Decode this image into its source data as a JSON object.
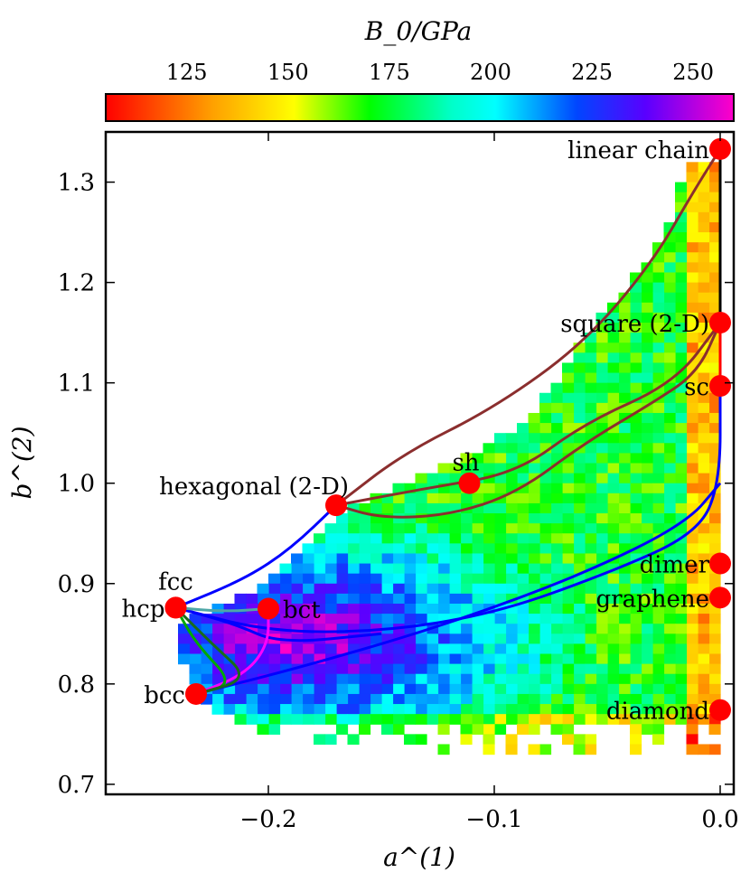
{
  "chart_data": {
    "type": "heatmap",
    "title": "",
    "xlabel": "a^(1)",
    "ylabel": "b^(2)",
    "xlim": [
      -0.272,
      0.006
    ],
    "ylim": [
      0.69,
      1.35
    ],
    "xticks": [
      -0.2,
      -0.1,
      0.0
    ],
    "xtick_labels": [
      "−0.2",
      "−0.1",
      "0.0"
    ],
    "yticks": [
      0.7,
      0.8,
      0.9,
      1.0,
      1.1,
      1.2,
      1.3
    ],
    "ytick_labels": [
      "0.7",
      "0.8",
      "0.9",
      "1.0",
      "1.1",
      "1.2",
      "1.3"
    ],
    "colorbar": {
      "label": "B_0/GPa",
      "range": [
        105,
        260
      ],
      "ticks": [
        125,
        150,
        175,
        200,
        225,
        250
      ],
      "tick_labels": [
        "125",
        "150",
        "175",
        "200",
        "225",
        "250"
      ],
      "colormap": "gist_rainbow_reversed"
    },
    "heatmap": {
      "cell_size_a": 0.005,
      "cell_size_b": 0.01,
      "description_of_fill": "bulk modulus B0 per (a1, b2) cell; cyan/green near a1=0, blue to violet toward a1=-0.2, b2 approx 0.8-0.9",
      "rows": [
        {
          "b": 1.32,
          "a_min": -0.01,
          "a_max": 0.0
        },
        {
          "b": 1.3,
          "a_min": -0.015,
          "a_max": 0.0
        },
        {
          "b": 1.26,
          "a_min": -0.02,
          "a_max": 0.0
        },
        {
          "b": 1.22,
          "a_min": -0.03,
          "a_max": 0.0
        },
        {
          "b": 1.18,
          "a_min": -0.045,
          "a_max": 0.0
        },
        {
          "b": 1.14,
          "a_min": -0.06,
          "a_max": 0.0
        },
        {
          "b": 1.1,
          "a_min": -0.07,
          "a_max": 0.0
        },
        {
          "b": 1.06,
          "a_min": -0.085,
          "a_max": 0.0
        },
        {
          "b": 1.02,
          "a_min": -0.115,
          "a_max": 0.0
        },
        {
          "b": 0.98,
          "a_min": -0.16,
          "a_max": 0.0
        },
        {
          "b": 0.94,
          "a_min": -0.18,
          "a_max": 0.0
        },
        {
          "b": 0.9,
          "a_min": -0.2,
          "a_max": 0.0
        },
        {
          "b": 0.86,
          "a_min": -0.235,
          "a_max": 0.0
        },
        {
          "b": 0.82,
          "a_min": -0.235,
          "a_max": 0.0
        },
        {
          "b": 0.78,
          "a_min": -0.225,
          "a_max": 0.0
        },
        {
          "b": 0.75,
          "a_min": -0.2,
          "a_max": 0.0
        },
        {
          "b": 0.73,
          "a_min": -0.1,
          "a_max": 0.0
        }
      ]
    },
    "points": [
      {
        "name": "linear chain",
        "a": 0.0,
        "b": 1.333
      },
      {
        "name": "square (2-D)",
        "a": 0.0,
        "b": 1.16
      },
      {
        "name": "sc",
        "a": 0.0,
        "b": 1.097
      },
      {
        "name": "sh",
        "a": -0.111,
        "b": 1.0
      },
      {
        "name": "hexagonal (2-D)",
        "a": -0.17,
        "b": 0.978
      },
      {
        "name": "dimer",
        "a": 0.0,
        "b": 0.92
      },
      {
        "name": "graphene",
        "a": 0.0,
        "b": 0.886
      },
      {
        "name": "fcc",
        "a": -0.241,
        "b": 0.876
      },
      {
        "name": "hcp",
        "a": -0.241,
        "b": 0.876
      },
      {
        "name": "bct",
        "a": -0.2,
        "b": 0.875
      },
      {
        "name": "bcc",
        "a": -0.232,
        "b": 0.79
      },
      {
        "name": "diamond",
        "a": 0.0,
        "b": 0.774
      }
    ],
    "point_color": "#ff0000",
    "paths": [
      {
        "color": "#8b2e2e",
        "points": [
          [
            -0.17,
            0.978
          ],
          [
            -0.14,
            1.03
          ],
          [
            -0.1,
            1.075
          ],
          [
            -0.06,
            1.14
          ],
          [
            -0.03,
            1.22
          ],
          [
            -0.012,
            1.29
          ],
          [
            0.0,
            1.333
          ]
        ]
      },
      {
        "color": "#8b2e2e",
        "points": [
          [
            -0.17,
            0.978
          ],
          [
            -0.15,
            0.965
          ],
          [
            -0.12,
            0.968
          ],
          [
            -0.09,
            0.99
          ],
          [
            -0.06,
            1.04
          ],
          [
            -0.03,
            1.08
          ],
          [
            -0.01,
            1.11
          ],
          [
            0.0,
            1.16
          ]
        ]
      },
      {
        "color": "#8b2e2e",
        "points": [
          [
            -0.17,
            0.978
          ],
          [
            -0.13,
            0.995
          ],
          [
            -0.09,
            1.01
          ],
          [
            -0.06,
            1.06
          ],
          [
            -0.02,
            1.1
          ],
          [
            0.0,
            1.16
          ]
        ]
      },
      {
        "color": "#000000",
        "points": [
          [
            0.0,
            1.333
          ],
          [
            0.0,
            1.16
          ]
        ]
      },
      {
        "color": "#ff0000",
        "points": [
          [
            0.0,
            1.16
          ],
          [
            0.0,
            1.097
          ]
        ]
      },
      {
        "color": "#0000ff",
        "points": [
          [
            -0.241,
            0.876
          ],
          [
            -0.21,
            0.905
          ],
          [
            -0.19,
            0.935
          ],
          [
            -0.17,
            0.978
          ]
        ]
      },
      {
        "color": "#0000ff",
        "points": [
          [
            -0.241,
            0.876
          ],
          [
            -0.2,
            0.852
          ],
          [
            -0.15,
            0.852
          ],
          [
            -0.1,
            0.87
          ],
          [
            -0.05,
            0.91
          ],
          [
            -0.01,
            0.95
          ],
          [
            0.0,
            1.0
          ],
          [
            0.0,
            1.097
          ]
        ]
      },
      {
        "color": "#0000ff",
        "points": [
          [
            -0.232,
            0.79
          ],
          [
            -0.18,
            0.82
          ],
          [
            -0.12,
            0.86
          ],
          [
            -0.06,
            0.91
          ],
          [
            -0.015,
            0.96
          ],
          [
            0.0,
            1.0
          ]
        ]
      },
      {
        "color": "#0000ff",
        "points": [
          [
            -0.241,
            0.876
          ],
          [
            -0.215,
            0.86
          ],
          [
            -0.195,
            0.84
          ],
          [
            -0.15,
            0.85
          ]
        ]
      },
      {
        "color": "#4fa7a7",
        "points": [
          [
            -0.241,
            0.876
          ],
          [
            -0.22,
            0.872
          ],
          [
            -0.2,
            0.875
          ]
        ]
      },
      {
        "color": "#ff00ff",
        "points": [
          [
            -0.232,
            0.79
          ],
          [
            -0.21,
            0.81
          ],
          [
            -0.2,
            0.84
          ],
          [
            -0.2,
            0.875
          ]
        ]
      },
      {
        "color": "#00aa00",
        "points": [
          [
            -0.241,
            0.876
          ],
          [
            -0.232,
            0.84
          ],
          [
            -0.215,
            0.8
          ],
          [
            -0.232,
            0.79
          ]
        ]
      },
      {
        "color": "#1a6b1a",
        "points": [
          [
            -0.241,
            0.876
          ],
          [
            -0.225,
            0.84
          ],
          [
            -0.208,
            0.805
          ],
          [
            -0.232,
            0.79
          ]
        ]
      }
    ]
  }
}
